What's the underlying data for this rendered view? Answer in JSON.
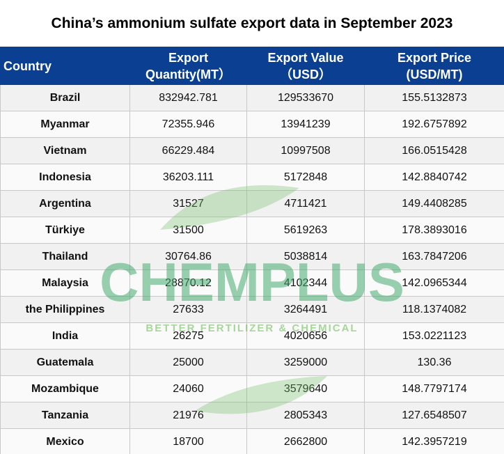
{
  "title": "China’s ammonium sulfate export data in September 2023",
  "table": {
    "header": [
      [
        "Country"
      ],
      [
        "Export",
        "Quantity(MT）"
      ],
      [
        "Export Value",
        "（USD）"
      ],
      [
        "Export Price",
        "(USD/MT)"
      ]
    ],
    "rows": [
      [
        "Brazil",
        "832942.781",
        "129533670",
        "155.5132873"
      ],
      [
        "Myanmar",
        "72355.946",
        "13941239",
        "192.6757892"
      ],
      [
        "Vietnam",
        "66229.484",
        "10997508",
        "166.0515428"
      ],
      [
        "Indonesia",
        "36203.111",
        "5172848",
        "142.8840742"
      ],
      [
        "Argentina",
        "31527",
        "4711421",
        "149.4408285"
      ],
      [
        "Türkiye",
        "31500",
        "5619263",
        "178.3893016"
      ],
      [
        "Thailand",
        "30764.86",
        "5038814",
        "163.7847206"
      ],
      [
        "Malaysia",
        "28870.12",
        "4102344",
        "142.0965344"
      ],
      [
        "the Philippines",
        "27633",
        "3264491",
        "118.1374082"
      ],
      [
        "India",
        "26275",
        "4020656",
        "153.0221123"
      ],
      [
        "Guatemala",
        "25000",
        "3259000",
        "130.36"
      ],
      [
        "Mozambique",
        "24060",
        "3579640",
        "148.7797174"
      ],
      [
        "Tanzania",
        "21976",
        "2805343",
        "127.6548507"
      ],
      [
        "Mexico",
        "18700",
        "2662800",
        "142.3957219"
      ]
    ]
  },
  "watermark": {
    "name": "CHEMPLUS",
    "tagline": "BETTER FERTILIZER & CHEMICAL"
  }
}
